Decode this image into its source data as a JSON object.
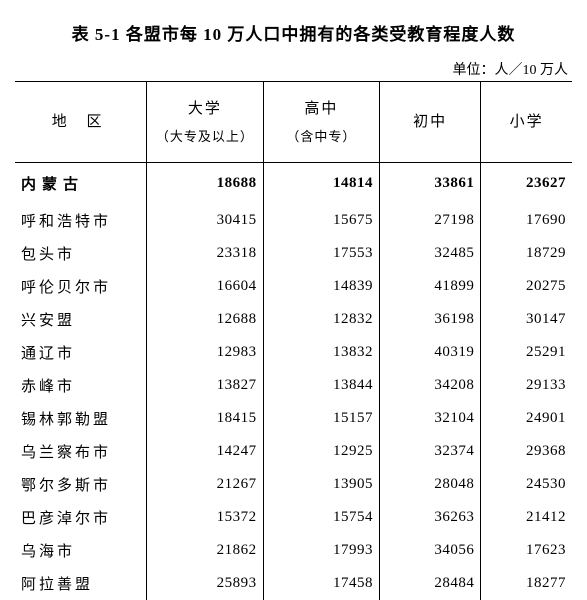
{
  "title": "表 5-1  各盟市每 10 万人口中拥有的各类受教育程度人数",
  "unit": "单位：人／10 万人",
  "table": {
    "type": "table",
    "background_color": "#ffffff",
    "text_color": "#000000",
    "font_family": "SimSun",
    "base_fontsize": 15,
    "columns": [
      {
        "key": "region",
        "label": "地  区",
        "sub": "",
        "align": "left"
      },
      {
        "key": "univ",
        "label": "大学",
        "sub": "（大专及以上）",
        "align": "right"
      },
      {
        "key": "hs",
        "label": "高中",
        "sub": "（含中专）",
        "align": "right"
      },
      {
        "key": "jhs",
        "label": "初中",
        "sub": "",
        "align": "right"
      },
      {
        "key": "pri",
        "label": "小学",
        "sub": "",
        "align": "right"
      }
    ],
    "total_row": {
      "region": "内蒙古",
      "univ": 18688,
      "hs": 14814,
      "jhs": 33861,
      "pri": 23627
    },
    "rows": [
      {
        "region": "呼和浩特市",
        "univ": 30415,
        "hs": 15675,
        "jhs": 27198,
        "pri": 17690
      },
      {
        "region": "包头市",
        "univ": 23318,
        "hs": 17553,
        "jhs": 32485,
        "pri": 18729
      },
      {
        "region": "呼伦贝尔市",
        "univ": 16604,
        "hs": 14839,
        "jhs": 41899,
        "pri": 20275
      },
      {
        "region": "兴安盟",
        "univ": 12688,
        "hs": 12832,
        "jhs": 36198,
        "pri": 30147
      },
      {
        "region": "通辽市",
        "univ": 12983,
        "hs": 13832,
        "jhs": 40319,
        "pri": 25291
      },
      {
        "region": "赤峰市",
        "univ": 13827,
        "hs": 13844,
        "jhs": 34208,
        "pri": 29133
      },
      {
        "region": "锡林郭勒盟",
        "univ": 18415,
        "hs": 15157,
        "jhs": 32104,
        "pri": 24901
      },
      {
        "region": "乌兰察布市",
        "univ": 14247,
        "hs": 12925,
        "jhs": 32374,
        "pri": 29368
      },
      {
        "region": "鄂尔多斯市",
        "univ": 21267,
        "hs": 13905,
        "jhs": 28048,
        "pri": 24530
      },
      {
        "region": "巴彦淖尔市",
        "univ": 15372,
        "hs": 15754,
        "jhs": 36263,
        "pri": 21412
      },
      {
        "region": "乌海市",
        "univ": 21862,
        "hs": 17993,
        "jhs": 34056,
        "pri": 17623
      },
      {
        "region": "阿拉善盟",
        "univ": 25893,
        "hs": 17458,
        "jhs": 28484,
        "pri": 18277
      }
    ]
  }
}
